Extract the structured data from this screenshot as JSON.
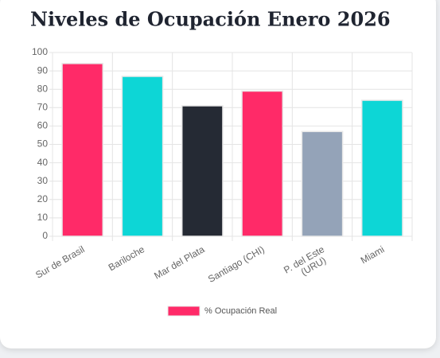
{
  "chart_data": {
    "type": "bar",
    "title": "Niveles de Ocupación Enero 2026",
    "categories": [
      "Sur de Brasil",
      "Bariloche",
      "Mar del Plata",
      "Santiago (CHI)",
      [
        "P. del Este",
        "(URU)"
      ],
      "Miami"
    ],
    "series": [
      {
        "name": "% Ocupación Real",
        "colors": [
          "#ff2a68",
          "#0dd6d6",
          "#252a34",
          "#ff2a68",
          "#94a3b8",
          "#0dd6d6"
        ],
        "values": [
          94,
          87,
          71,
          79,
          57,
          74
        ]
      }
    ],
    "ylim": [
      0,
      100
    ],
    "yticks": [
      0,
      10,
      20,
      30,
      40,
      50,
      60,
      70,
      80,
      90,
      100
    ],
    "grid": true,
    "legend": "bottom"
  }
}
